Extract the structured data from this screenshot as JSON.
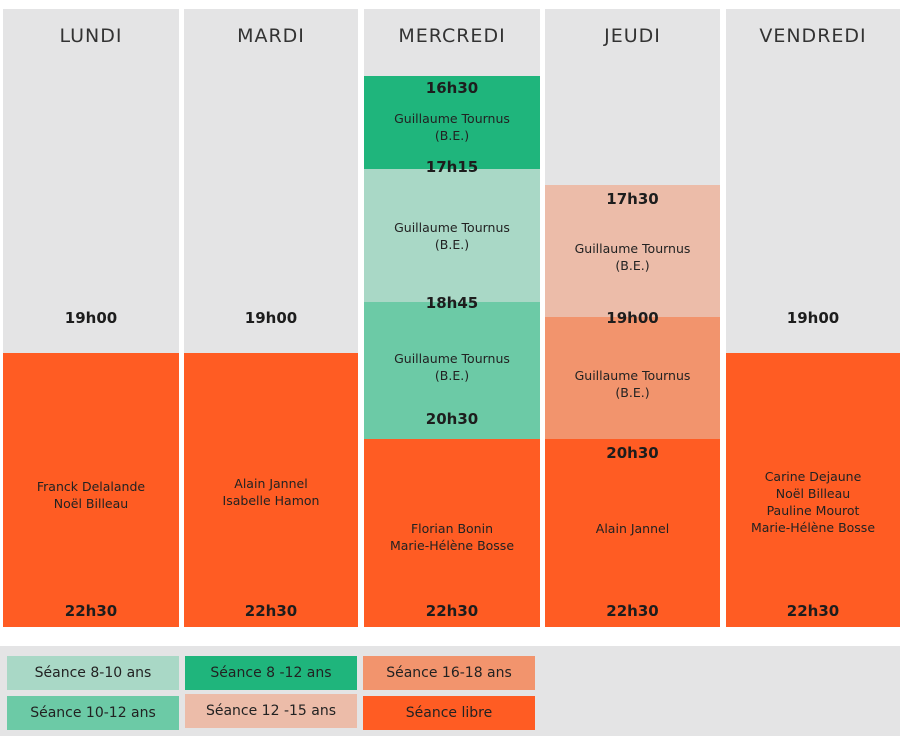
{
  "days": [
    {
      "name": "LUNDI",
      "start": "19h00",
      "end": "22h30",
      "names": [
        "Franck Delalande",
        "Noël Billeau"
      ]
    },
    {
      "name": "MARDI",
      "start": "19h00",
      "end": "22h30",
      "names": [
        "Alain Jannel",
        "Isabelle Hamon"
      ]
    },
    {
      "name": "MERCREDI",
      "times": [
        "16h30",
        "17h15",
        "18h45",
        "20h30",
        "22h30"
      ],
      "sessions": [
        {
          "coach": "Guillaume Tournus",
          "note": "(B.E.)"
        },
        {
          "coach": "Guillaume Tournus",
          "note": "(B.E.)"
        },
        {
          "coach": "Guillaume Tournus",
          "note": "(B.E.)"
        }
      ],
      "names": [
        "Florian Bonin",
        "Marie-Hélène Bosse"
      ]
    },
    {
      "name": "JEUDI",
      "times": [
        "17h30",
        "19h00",
        "20h30",
        "22h30"
      ],
      "sessions": [
        {
          "coach": "Guillaume Tournus",
          "note": "(B.E.)"
        },
        {
          "coach": "Guillaume Tournus",
          "note": "(B.E.)"
        }
      ],
      "names": [
        "Alain Jannel"
      ]
    },
    {
      "name": "VENDREDI",
      "start": "19h00",
      "end": "22h30",
      "names": [
        "Carine Dejaune",
        "Noël Billeau",
        "Pauline Mourot",
        "Marie-Hélène Bosse"
      ]
    }
  ],
  "legend": [
    {
      "label": "Séance 8-10 ans",
      "color": "#a9d8c6"
    },
    {
      "label": "Séance 8 -12 ans",
      "color": "#1fb57c"
    },
    {
      "label": "Séance 16-18 ans",
      "color": "#f2946d"
    },
    {
      "label": "Séance 10-12 ans",
      "color": "#6ccaa6"
    },
    {
      "label": "Séance 12 -15 ans",
      "color": "#ecbca9"
    },
    {
      "label": "Séance libre",
      "color": "#ff5c23"
    }
  ],
  "colors": {
    "free": "#ff5c23",
    "column": "#e4e4e5"
  }
}
